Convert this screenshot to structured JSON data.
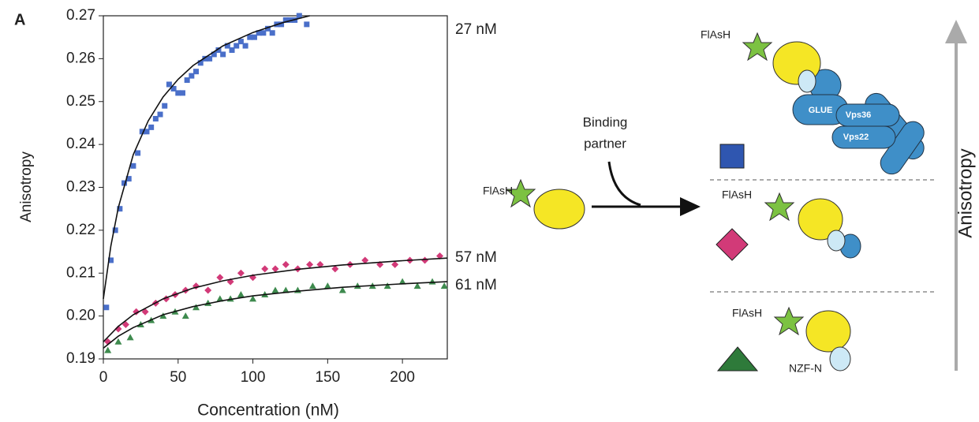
{
  "chart_data": {
    "type": "scatter",
    "panel_label": "A",
    "x_label": "Concentration (nM)",
    "y_label": "Anisotropy",
    "xlim": [
      0,
      230
    ],
    "ylim": [
      0.19,
      0.27
    ],
    "xticks": [
      0,
      50,
      100,
      150,
      200
    ],
    "yticks": [
      0.19,
      {
        "value": 0.2,
        "label": "0.20"
      },
      0.21,
      0.22,
      0.23,
      0.24,
      0.25,
      0.26,
      0.27
    ],
    "series": [
      {
        "name": "27 nM",
        "color": "#4a6fc9",
        "marker": "square",
        "x": [
          2,
          5,
          8,
          11,
          14,
          17,
          20,
          23,
          26,
          29,
          32,
          35,
          38,
          41,
          44,
          47,
          50,
          53,
          56,
          59,
          62,
          65,
          68,
          71,
          74,
          77,
          80,
          83,
          86,
          89,
          92,
          95,
          98,
          101,
          104,
          107,
          110,
          113,
          116,
          119,
          122,
          125,
          128,
          131,
          136
        ],
        "values": [
          0.202,
          0.213,
          0.22,
          0.225,
          0.231,
          0.232,
          0.235,
          0.238,
          0.243,
          0.243,
          0.244,
          0.246,
          0.247,
          0.249,
          0.254,
          0.253,
          0.252,
          0.252,
          0.255,
          0.256,
          0.257,
          0.259,
          0.26,
          0.26,
          0.261,
          0.262,
          0.261,
          0.263,
          0.262,
          0.263,
          0.264,
          0.263,
          0.265,
          0.265,
          0.266,
          0.266,
          0.267,
          0.266,
          0.268,
          0.268,
          0.269,
          0.269,
          0.269,
          0.27,
          0.268
        ],
        "fit": {
          "color": "#111111",
          "x": [
            0,
            5,
            10,
            20,
            30,
            40,
            50,
            60,
            80,
            100,
            120,
            138
          ],
          "values": [
            0.204,
            0.2163,
            0.2253,
            0.2376,
            0.2455,
            0.2511,
            0.2552,
            0.2584,
            0.263,
            0.2661,
            0.2684,
            0.27
          ]
        }
      },
      {
        "name": "57 nM",
        "color": "#d23a78",
        "marker": "diamond",
        "x": [
          3,
          10,
          15,
          22,
          28,
          35,
          42,
          48,
          55,
          62,
          70,
          78,
          85,
          92,
          100,
          108,
          115,
          122,
          130,
          138,
          145,
          155,
          165,
          175,
          185,
          195,
          205,
          215,
          225
        ],
        "values": [
          0.194,
          0.197,
          0.198,
          0.201,
          0.201,
          0.203,
          0.204,
          0.205,
          0.206,
          0.207,
          0.206,
          0.209,
          0.208,
          0.21,
          0.209,
          0.211,
          0.211,
          0.212,
          0.211,
          0.212,
          0.212,
          0.211,
          0.212,
          0.213,
          0.212,
          0.212,
          0.213,
          0.213,
          0.214
        ],
        "fit": {
          "color": "#111111",
          "x": [
            0,
            10,
            20,
            40,
            60,
            80,
            100,
            130,
            160,
            200,
            230
          ],
          "values": [
            0.194,
            0.1976,
            0.2003,
            0.204,
            0.2065,
            0.2082,
            0.2095,
            0.2109,
            0.2119,
            0.2129,
            0.2135
          ]
        }
      },
      {
        "name": "61 nM",
        "color": "#3e8a4e",
        "marker": "triangle",
        "x": [
          3,
          10,
          18,
          25,
          32,
          40,
          48,
          55,
          62,
          70,
          78,
          85,
          92,
          100,
          108,
          115,
          122,
          130,
          140,
          150,
          160,
          170,
          180,
          190,
          200,
          210,
          220,
          228
        ],
        "values": [
          0.192,
          0.194,
          0.195,
          0.198,
          0.199,
          0.2,
          0.201,
          0.2,
          0.202,
          0.203,
          0.204,
          0.204,
          0.205,
          0.204,
          0.205,
          0.206,
          0.206,
          0.206,
          0.207,
          0.207,
          0.206,
          0.207,
          0.207,
          0.207,
          0.208,
          0.207,
          0.208,
          0.207
        ],
        "fit": {
          "color": "#111111",
          "x": [
            0,
            10,
            20,
            40,
            60,
            80,
            100,
            130,
            160,
            200,
            230
          ],
          "values": [
            0.1925,
            0.1953,
            0.1973,
            0.2003,
            0.2022,
            0.2036,
            0.2047,
            0.2058,
            0.2067,
            0.2075,
            0.208
          ]
        }
      }
    ]
  },
  "diagram": {
    "probe": "FlAsH",
    "binding_partner": [
      "Binding",
      "partner"
    ],
    "panels": [
      {
        "probe": "FlAsH",
        "labels": [
          "GLUE",
          "Vps36",
          "Vps22"
        ]
      },
      {
        "probe": "FlAsH"
      },
      {
        "probe": "FlAsH",
        "labels": [
          "NZF-N"
        ]
      }
    ],
    "axis_label": "Anisotropy"
  }
}
